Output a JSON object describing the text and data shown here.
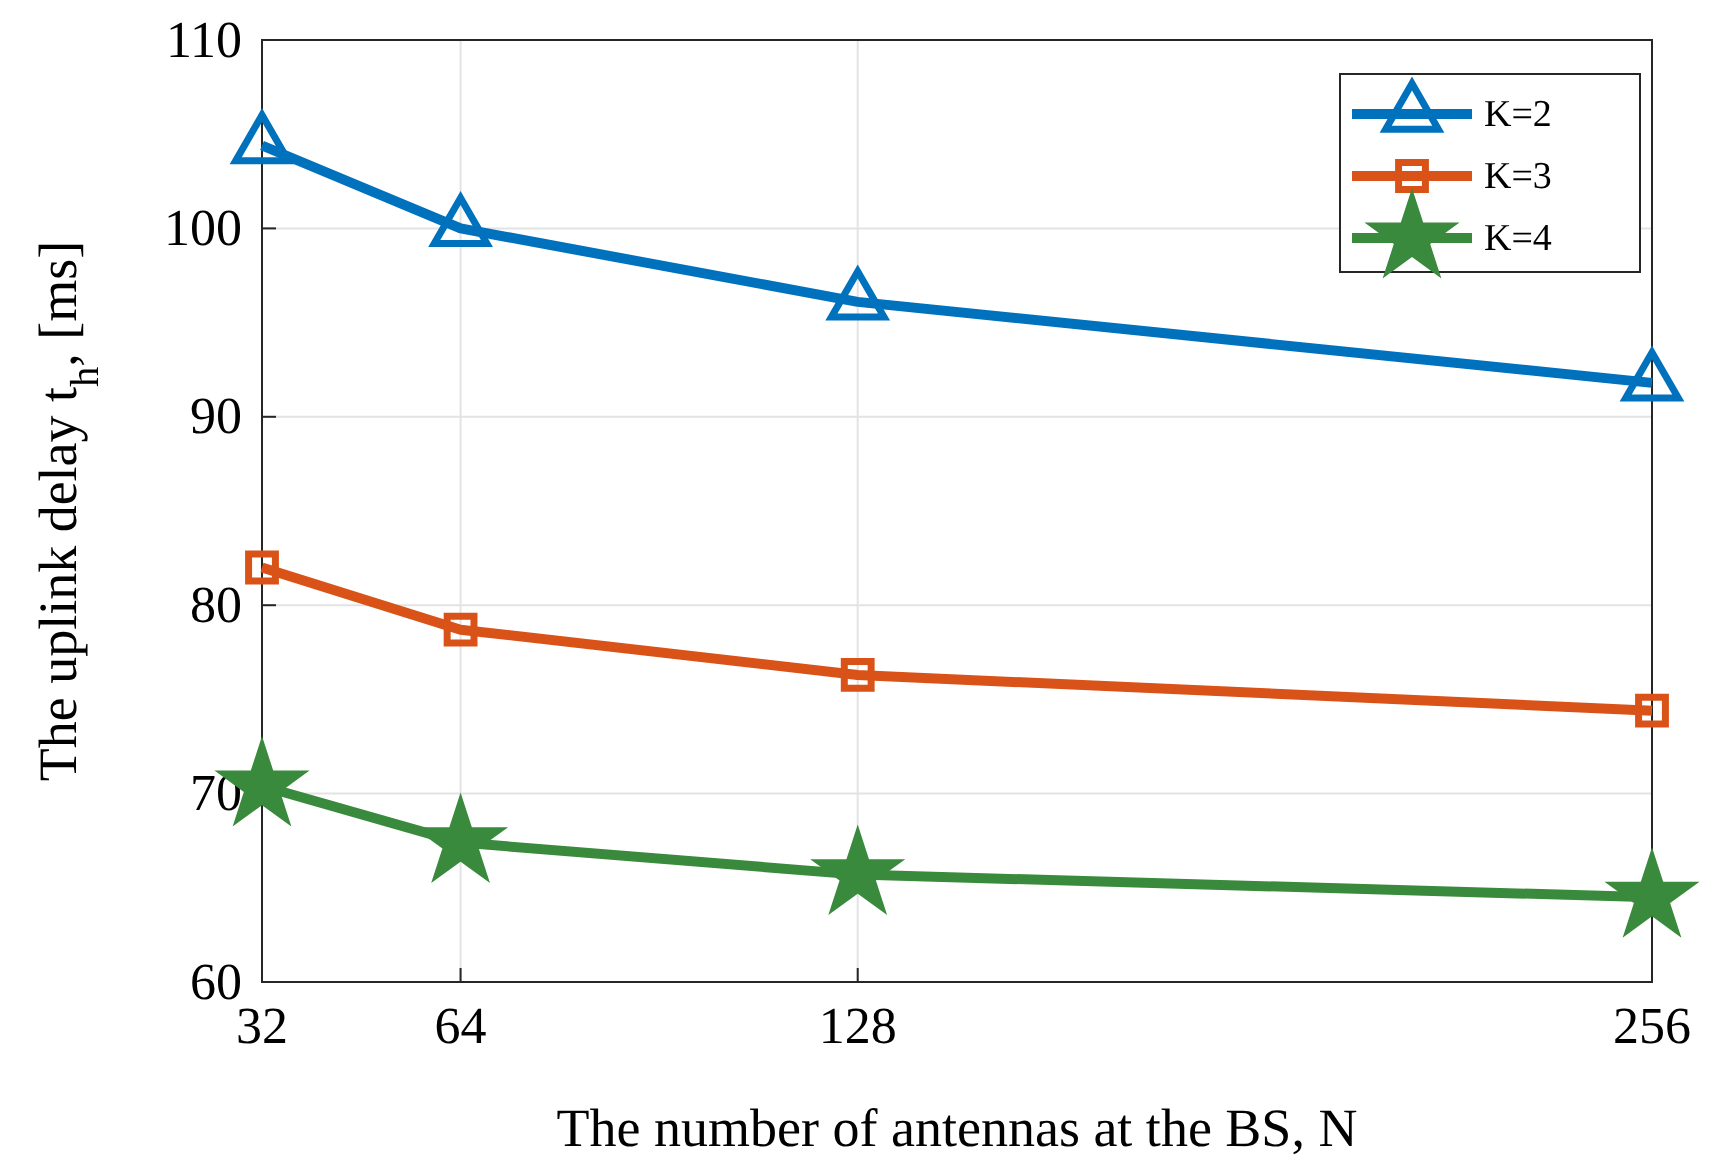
{
  "chart_data": {
    "type": "line",
    "xlabel": "The number of antennas at the BS, N",
    "ylabel": "The uplink delay t$_{h}$, [ms]",
    "x": [
      32,
      64,
      128,
      256
    ],
    "xlim": [
      32,
      256
    ],
    "xticks": [
      32,
      64,
      128,
      256
    ],
    "ylim": [
      60,
      110
    ],
    "yticks": [
      60,
      70,
      80,
      90,
      100,
      110
    ],
    "grid": true,
    "legend": "top right",
    "line_style": "solid",
    "series": [
      {
        "name": "K=2",
        "color": "#0072bd",
        "marker": "triangle",
        "values": [
          104.4,
          100,
          96.1,
          91.8
        ]
      },
      {
        "name": "K=3",
        "color": "#d95319",
        "marker": "square",
        "values": [
          82,
          78.7,
          76.3,
          74.4
        ]
      },
      {
        "name": "K=4",
        "color": "#398a3c",
        "marker": "star",
        "values": [
          70.4,
          67.4,
          65.7,
          64.5
        ]
      }
    ]
  }
}
